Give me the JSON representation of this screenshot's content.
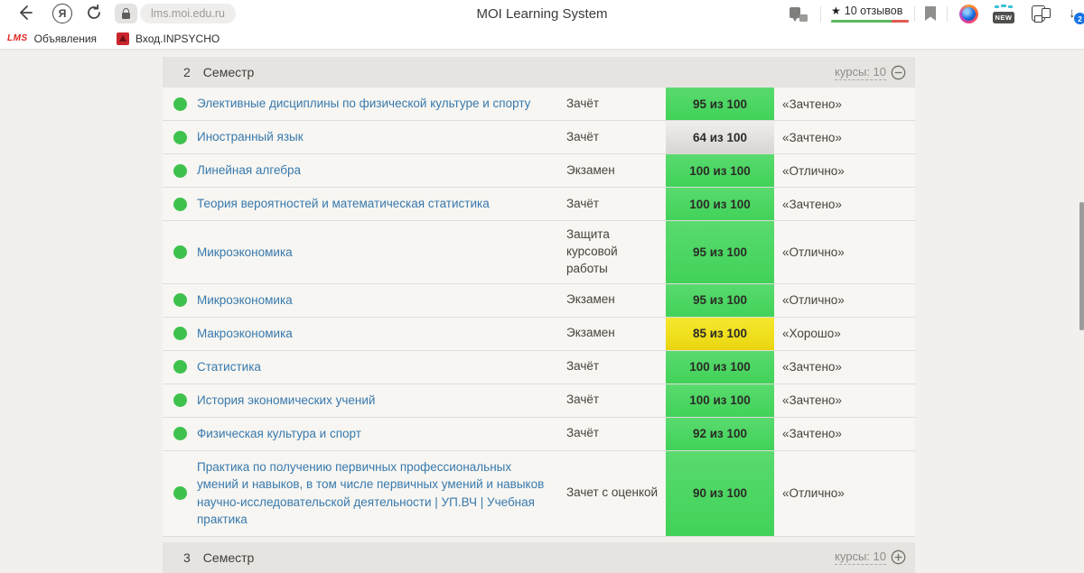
{
  "browser": {
    "url": "lms.moi.edu.ru",
    "page_title": "MOI Learning System",
    "rating_star": "★",
    "rating_label": "10 отзывов",
    "new_badge": "NEW",
    "downloads_count": "2",
    "back_glyph": "←",
    "reload_glyph": "↻",
    "download_glyph": "↓",
    "yandex_glyph": "Я"
  },
  "bookmarks": [
    {
      "logo": "LMS",
      "label": "Объявления"
    },
    {
      "label": "Вход.INPSYCHO"
    }
  ],
  "sections": {
    "current": {
      "number": "2",
      "word": "Семестр",
      "courses_label": "курсы: 10"
    },
    "next": {
      "number": "3",
      "word": "Семестр",
      "courses_label": "курсы: 10"
    }
  },
  "table": {
    "rows": [
      {
        "name": "Элективные дисциплины по физической культуре и спорту",
        "type": "Зачёт",
        "score": "95 из 100",
        "level": "green",
        "grade": "«Зачтено»"
      },
      {
        "name": "Иностранный язык",
        "type": "Зачёт",
        "score": "64 из 100",
        "level": "gray",
        "grade": "«Зачтено»"
      },
      {
        "name": "Линейная алгебра",
        "type": "Экзамен",
        "score": "100 из 100",
        "level": "green",
        "grade": "«Отлично»"
      },
      {
        "name": "Теория вероятностей и математическая статистика",
        "type": "Зачёт",
        "score": "100 из 100",
        "level": "green",
        "grade": "«Зачтено»"
      },
      {
        "name": "Микроэкономика",
        "type": "Защита курсовой работы",
        "score": "95 из 100",
        "level": "green",
        "grade": "«Отлично»"
      },
      {
        "name": "Микроэкономика",
        "type": "Экзамен",
        "score": "95 из 100",
        "level": "green",
        "grade": "«Отлично»"
      },
      {
        "name": "Макроэкономика",
        "type": "Экзамен",
        "score": "85 из 100",
        "level": "yellow",
        "grade": "«Хорошо»"
      },
      {
        "name": "Статистика",
        "type": "Зачёт",
        "score": "100 из 100",
        "level": "green",
        "grade": "«Зачтено»"
      },
      {
        "name": "История экономических учений",
        "type": "Зачёт",
        "score": "100 из 100",
        "level": "green",
        "grade": "«Зачтено»"
      },
      {
        "name": "Физическая культура и спорт",
        "type": "Зачёт",
        "score": "92 из 100",
        "level": "green",
        "grade": "«Зачтено»"
      },
      {
        "name": "Практика по получению первичных профессиональных умений и навыков, в том числе первичных умений и навыков научно-исследовательской деятельности | УП.ВЧ | Учебная практика",
        "type": "Зачет с оценкой",
        "score": "90 из 100",
        "level": "green",
        "grade": "«Отлично»"
      }
    ]
  },
  "colors": {
    "badge_green": "#4bd662",
    "badge_gray": "#e2e1df",
    "badge_yellow": "#f0df1d",
    "status_dot": "#3ec24d",
    "link": "#3879ad",
    "header_bg": "#e5e4e0",
    "row_bg": "#f7f6f2",
    "page_bg": "#f1f0ec",
    "download_badge": "#1673e6"
  }
}
